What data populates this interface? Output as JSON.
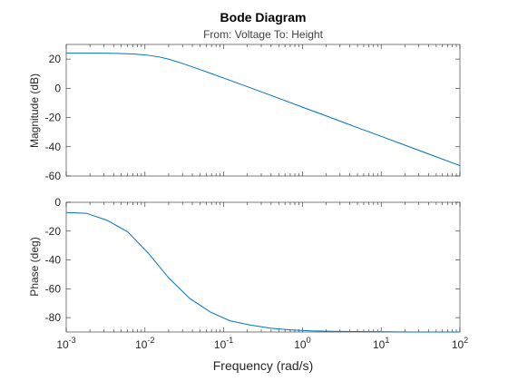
{
  "chart_data": {
    "type": "line",
    "title": "Bode Diagram",
    "subtitle": "From: Voltage  To: Height",
    "xlabel": "Frequency (rad/s)",
    "xscale": "log",
    "xlim": [
      0.001,
      100
    ],
    "x_ticks": [
      {
        "base": "10",
        "exp": "-3",
        "value": 0.001
      },
      {
        "base": "10",
        "exp": "-2",
        "value": 0.01
      },
      {
        "base": "10",
        "exp": "-1",
        "value": 0.1
      },
      {
        "base": "10",
        "exp": "0",
        "value": 1
      },
      {
        "base": "10",
        "exp": "1",
        "value": 10
      },
      {
        "base": "10",
        "exp": "2",
        "value": 100
      }
    ],
    "line_color": "#0072bd",
    "panels": [
      {
        "key": "magnitude",
        "ylabel": "Magnitude (dB)",
        "ylim": [
          -60,
          30
        ],
        "y_ticks": [
          20,
          0,
          -20,
          -40,
          -60
        ],
        "x": [
          0.001,
          0.002,
          0.003,
          0.005,
          0.007,
          0.01,
          0.015,
          0.02,
          0.03,
          0.05,
          0.07,
          0.1,
          0.2,
          0.5,
          1,
          2,
          5,
          10,
          20,
          50,
          100
        ],
        "y": [
          24.0,
          24.0,
          24.0,
          23.8,
          23.5,
          22.9,
          21.5,
          19.9,
          17.0,
          12.8,
          10.0,
          7.0,
          1.1,
          -6.8,
          -12.9,
          -18.9,
          -26.9,
          -32.9,
          -38.9,
          -46.9,
          -52.9
        ]
      },
      {
        "key": "phase",
        "ylabel": "Phase (deg)",
        "ylim": [
          -90,
          0
        ],
        "y_ticks": [
          0,
          -20,
          -40,
          -60,
          -80
        ],
        "x": [
          0.001,
          0.0018,
          0.0033,
          0.006,
          0.011,
          0.02,
          0.037,
          0.068,
          0.12,
          0.22,
          0.4,
          0.7,
          1.3,
          2.4,
          4.4,
          8,
          15,
          27,
          50,
          100
        ],
        "y": [
          -7.1,
          -7.6,
          -12.5,
          -20.4,
          -35.2,
          -52.4,
          -66.7,
          -76.2,
          -82.2,
          -85.2,
          -87.4,
          -88.5,
          -89.2,
          -89.5,
          -89.7,
          -89.8,
          -89.9,
          -90.0,
          -90.0,
          -90.0
        ]
      }
    ]
  }
}
